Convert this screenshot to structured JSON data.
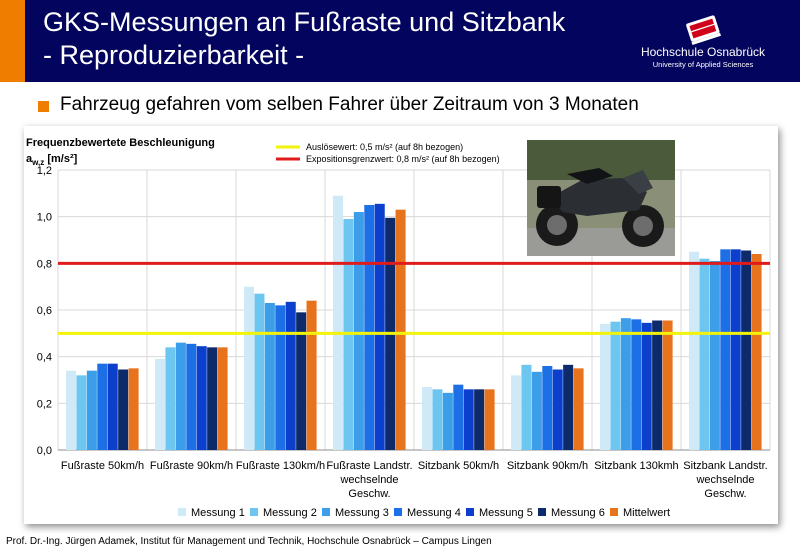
{
  "header": {
    "title_line1": "GKS-Messungen an Fußraste und Sitzbank",
    "title_line2": "- Reproduzierbarkeit -",
    "logo_name": "Hochschule Osnabrück",
    "logo_sub": "University of Applied Sciences"
  },
  "bullet": "Fahrzeug gefahren vom selben Fahrer über Zeitraum von 3 Monaten",
  "footer": "Prof. Dr.-Ing. Jürgen Adamek,  Institut für Management und Technik, Hochschule Osnabrück – Campus Lingen",
  "colors": {
    "accent": "#ef7d00",
    "header_bg": "#03045e"
  },
  "chart_data": {
    "type": "bar",
    "ylabel_line1": "Frequenzbewertete Beschleunigung",
    "ylabel_line2": "a",
    "ylabel_sub": "w,z",
    "ylabel_unit": " [m/s²]",
    "ylim": [
      0,
      1.2
    ],
    "yticks": [
      "0,0",
      "0,2",
      "0,4",
      "0,6",
      "0,8",
      "1,0",
      "1,2"
    ],
    "grid": true,
    "categories": [
      [
        "Fußraste 50km/h"
      ],
      [
        "Fußraste 90km/h"
      ],
      [
        "Fußraste 130km/h"
      ],
      [
        "Fußraste Landstr.",
        "wechselnde",
        "Geschw."
      ],
      [
        "Sitzbank 50km/h"
      ],
      [
        "Sitzbank 90km/h"
      ],
      [
        "Sitzbank 130kmh"
      ],
      [
        "Sitzbank Landstr.",
        "wechselnde",
        "Geschw."
      ]
    ],
    "series": [
      {
        "name": "Messung 1",
        "color": "#cfe9f7",
        "values": [
          0.34,
          0.39,
          0.7,
          1.09,
          0.27,
          0.32,
          0.54,
          0.85
        ]
      },
      {
        "name": "Messung 2",
        "color": "#6cc6f0",
        "values": [
          0.32,
          0.44,
          0.67,
          0.99,
          0.26,
          0.365,
          0.55,
          0.82
        ]
      },
      {
        "name": "Messung 3",
        "color": "#3c9ee8",
        "values": [
          0.34,
          0.46,
          0.63,
          1.02,
          0.245,
          0.335,
          0.565,
          0.81
        ]
      },
      {
        "name": "Messung 4",
        "color": "#1d6fe6",
        "values": [
          0.37,
          0.455,
          0.62,
          1.05,
          0.28,
          0.36,
          0.56,
          0.86
        ]
      },
      {
        "name": "Messung 5",
        "color": "#0b3fcc",
        "values": [
          0.37,
          0.445,
          0.635,
          1.055,
          0.26,
          0.345,
          0.545,
          0.86
        ]
      },
      {
        "name": "Messung 6",
        "color": "#0d2a6b",
        "values": [
          0.345,
          0.44,
          0.59,
          0.995,
          0.26,
          0.365,
          0.555,
          0.855
        ]
      },
      {
        "name": "Mittelwert",
        "color": "#e8731d",
        "values": [
          0.35,
          0.44,
          0.64,
          1.03,
          0.26,
          0.35,
          0.555,
          0.84
        ]
      }
    ],
    "reference_lines": [
      {
        "label": "Auslösewert: 0,5 m/s² (auf 8h bezogen)",
        "value": 0.5,
        "color": "#f2f20a"
      },
      {
        "label": "Expositionsgrenzwert: 0,8 m/s² (auf 8h bezogen)",
        "value": 0.8,
        "color": "#e01b1b"
      }
    ],
    "legend_position": "bottom"
  }
}
